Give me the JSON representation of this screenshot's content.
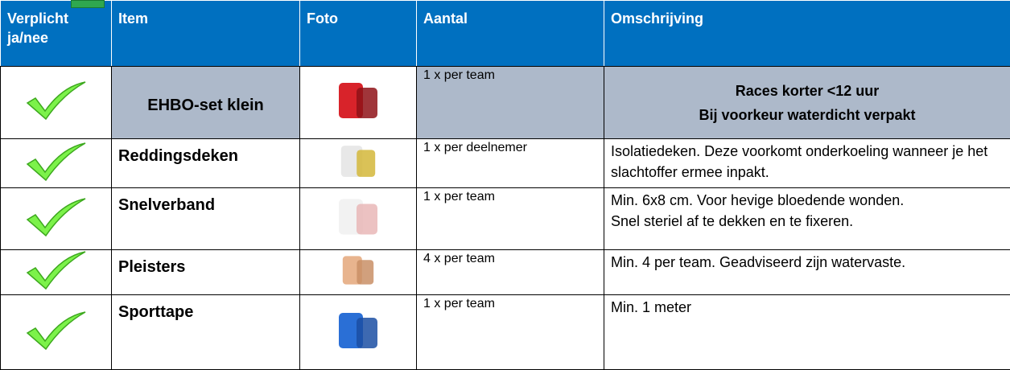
{
  "table": {
    "header": [
      "Verplicht ja/nee",
      "Item",
      "Foto",
      "Aantal",
      "Omschrijving"
    ],
    "rows": [
      {
        "item": "EHBO-set klein",
        "amount": "1 x per team",
        "description": [
          "Races korter <12 uur",
          "Bij voorkeur waterdicht verpakt"
        ]
      },
      {
        "item": "Reddingsdeken",
        "amount": "1 x per deelnemer",
        "description": [
          "Isolatiedeken. Deze voorkomt onderkoeling wanneer je het slachtoffer ermee inpakt."
        ]
      },
      {
        "item": "Snelverband",
        "amount": "1 x per team",
        "description": [
          "Min. 6x8 cm. Voor hevige bloedende wonden.",
          "Snel steriel af te dekken en te fixeren."
        ]
      },
      {
        "item": "Pleisters",
        "amount": "4 x per team",
        "description": [
          "Min. 4 per team. Geadviseerd zijn watervaste."
        ]
      },
      {
        "item": "Sporttape",
        "amount": "1 x per team",
        "description": [
          "Min. 1 meter"
        ]
      }
    ]
  }
}
